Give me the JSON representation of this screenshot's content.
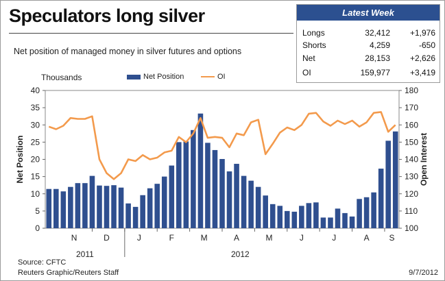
{
  "title": "Speculators long silver",
  "subtitle": "Net position of managed money in silver futures and options",
  "latest_week": {
    "header": "Latest Week",
    "rows": [
      {
        "label": "Longs",
        "value": "32,412",
        "change": "+1,976"
      },
      {
        "label": "Shorts",
        "value": "4,259",
        "change": "-650"
      },
      {
        "label": "Net",
        "value": "28,153",
        "change": "+2,626"
      },
      {
        "label": "OI",
        "value": "159,977",
        "change": "+3,419"
      }
    ]
  },
  "footer": {
    "source": "Source: CFTC",
    "credit": "Reuters Graphic/Reuters Staff",
    "date": "9/7/2012"
  },
  "colors": {
    "bar": "#2f4f8f",
    "line": "#f39a4c",
    "header_bg": "#2c5090"
  },
  "chart_data": {
    "type": "bar",
    "left_axis_title": "Thousands",
    "ylabel": "Net Position",
    "ylabel_right": "Open Interest",
    "ylim": [
      0,
      40
    ],
    "yticks": [
      0,
      5,
      10,
      15,
      20,
      25,
      30,
      35,
      40
    ],
    "ylim_right": [
      100,
      180
    ],
    "yticks_right": [
      100,
      110,
      120,
      130,
      140,
      150,
      160,
      170,
      180
    ],
    "month_labels": [
      "N",
      "D",
      "J",
      "F",
      "M",
      "A",
      "M",
      "J",
      "J",
      "A",
      "S"
    ],
    "year_labels": [
      "2011",
      "2012"
    ],
    "legend": {
      "position": "top",
      "entries": [
        "Net Position",
        "OI"
      ]
    },
    "series": [
      {
        "name": "Net Position",
        "type": "bar",
        "axis": "left",
        "values": [
          11.4,
          11.4,
          10.7,
          12.0,
          13.1,
          13.1,
          15.2,
          12.4,
          12.3,
          12.5,
          11.8,
          7.2,
          6.2,
          9.6,
          11.6,
          12.9,
          15.0,
          18.2,
          25.0,
          25.2,
          28.5,
          33.3,
          24.8,
          22.7,
          20.1,
          16.5,
          18.7,
          15.2,
          13.8,
          12.0,
          9.5,
          7.0,
          6.5,
          5.0,
          4.8,
          6.5,
          7.3,
          7.5,
          3.1,
          3.1,
          5.7,
          4.4,
          3.4,
          8.5,
          9.0,
          10.4,
          17.3,
          25.4,
          28.1
        ]
      },
      {
        "name": "OI",
        "type": "line",
        "axis": "right",
        "values": [
          159,
          157.5,
          159.5,
          164,
          163.5,
          163.5,
          165,
          140,
          132,
          128.5,
          132,
          140,
          139,
          142.5,
          140,
          141,
          144,
          145,
          153,
          150,
          155,
          164,
          152.5,
          153,
          152.5,
          147,
          155,
          154,
          161.5,
          163,
          143,
          149,
          155.5,
          158.5,
          157,
          160,
          166.5,
          167,
          162,
          159.5,
          162.5,
          160.5,
          162.5,
          159,
          161.5,
          167,
          167.5,
          156,
          160
        ]
      }
    ]
  }
}
